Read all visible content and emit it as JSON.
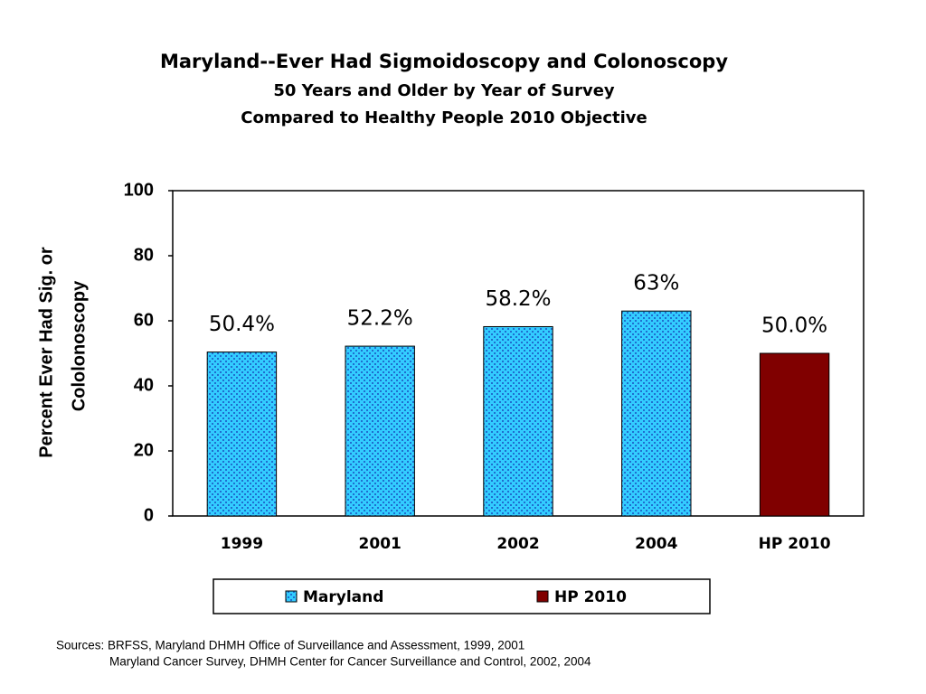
{
  "chart_data": {
    "type": "bar",
    "title": "Maryland--Ever Had Sigmoidoscopy and Colonoscopy",
    "subtitle": [
      "50 Years and Older by Year of Survey",
      "Compared to Healthy People 2010 Objective"
    ],
    "ylabel": [
      "Percent Ever Had Sig. or",
      "Cololonoscopy"
    ],
    "categories": [
      "1999",
      "2001",
      "2002",
      "2004",
      "HP 2010"
    ],
    "series": [
      {
        "name": "Maryland",
        "color": "#33ccff",
        "patterned": true,
        "values": [
          50.4,
          52.2,
          58.2,
          63,
          null
        ],
        "value_labels": [
          "50.4%",
          "52.2%",
          "58.2%",
          "63%",
          null
        ]
      },
      {
        "name": "HP 2010",
        "color": "#800000",
        "patterned": false,
        "values": [
          null,
          null,
          null,
          null,
          50
        ],
        "value_labels": [
          null,
          null,
          null,
          null,
          "50.0%"
        ]
      }
    ],
    "ylim": [
      0,
      100
    ],
    "yticks": [
      0,
      20,
      40,
      60,
      80,
      100
    ],
    "grid": false,
    "legend": "bottom",
    "sources": [
      "Sources: BRFSS, Maryland DHMH Office of Surveillance and Assessment, 1999, 2001",
      "Maryland Cancer Survey, DHMH Center for Cancer Surveillance and Control, 2002, 2004"
    ]
  }
}
